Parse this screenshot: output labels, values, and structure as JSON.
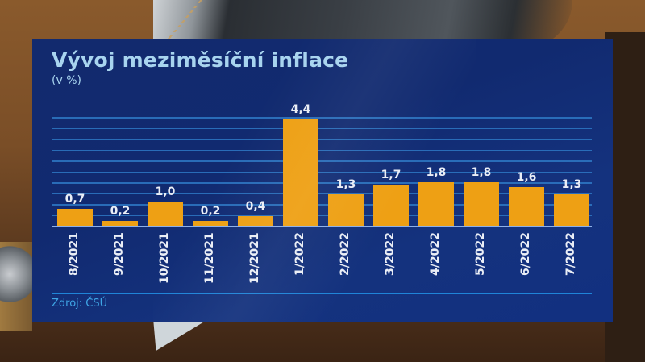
{
  "chart_data": {
    "type": "bar",
    "title": "Vývoj meziměsíční inflace",
    "subtitle": "(v %)",
    "xlabel": "",
    "ylabel": "v %",
    "categories": [
      "8/2021",
      "9/2021",
      "10/2021",
      "11/2021",
      "12/2021",
      "1/2022",
      "2/2022",
      "3/2022",
      "4/2022",
      "5/2022",
      "6/2022",
      "7/2022"
    ],
    "values": [
      0.7,
      0.2,
      1.0,
      0.2,
      0.4,
      4.4,
      1.3,
      1.7,
      1.8,
      1.8,
      1.6,
      1.3
    ],
    "value_labels": [
      "0,7",
      "0,2",
      "1,0",
      "0,2",
      "0,4",
      "4,4",
      "1,3",
      "1,7",
      "1,8",
      "1,8",
      "1,6",
      "1,3"
    ],
    "ylim": [
      0,
      5
    ],
    "grid": true,
    "gridline_step": 0.5,
    "legend": null,
    "source": "Zdroj: ČSÚ"
  },
  "colors": {
    "bar": "#eea014",
    "panel": "#112a70",
    "title": "#a8d4ef",
    "grid": "#2e78c4",
    "source": "#3fa6e6"
  }
}
